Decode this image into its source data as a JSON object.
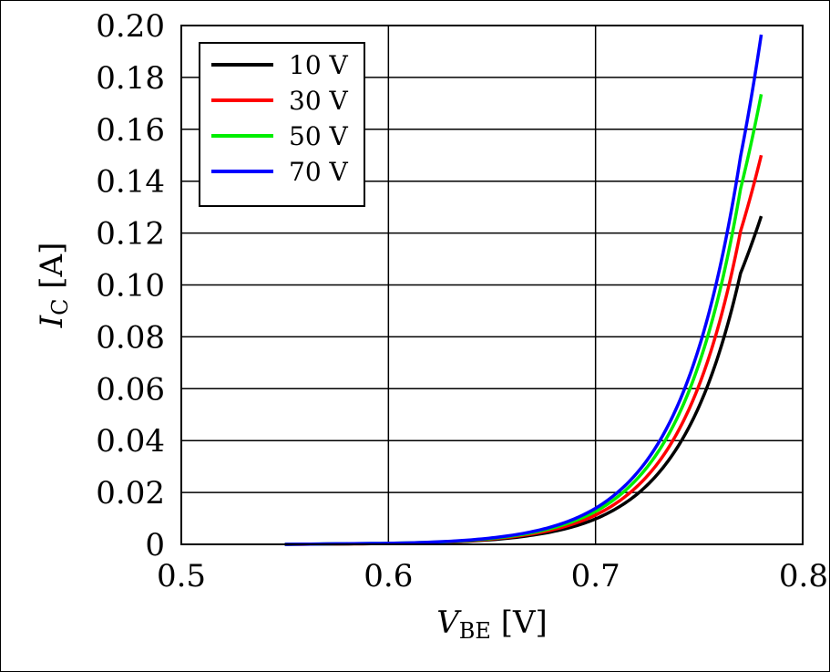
{
  "chart_data": {
    "type": "line",
    "title": "",
    "xlabel": {
      "main": "V",
      "sub": "BE",
      "unit": " [V]"
    },
    "ylabel": {
      "main": "I",
      "sub": "C",
      "unit": " [A]"
    },
    "xlim": [
      0.5,
      0.8
    ],
    "ylim": [
      0,
      0.2
    ],
    "x_ticks": [
      0.5,
      0.6,
      0.7,
      0.8
    ],
    "x_tick_labels": [
      "0.5",
      "0.6",
      "0.7",
      "0.8"
    ],
    "y_ticks": [
      0,
      0.02,
      0.04,
      0.06,
      0.08,
      0.1,
      0.12,
      0.14,
      0.16,
      0.18,
      0.2
    ],
    "y_tick_labels": [
      "0",
      "0.02",
      "0.04",
      "0.06",
      "0.08",
      "0.10",
      "0.12",
      "0.14",
      "0.16",
      "0.18",
      "0.20"
    ],
    "grid": true,
    "legend_position": "top-left",
    "x": [
      0.55,
      0.6,
      0.63,
      0.65,
      0.67,
      0.69,
      0.7,
      0.71,
      0.72,
      0.73,
      0.74,
      0.75,
      0.76,
      0.77,
      0.78
    ],
    "series": [
      {
        "name": "10 V",
        "color": "#000000",
        "values": [
          0.0,
          0.0003,
          0.0009,
          0.0018,
          0.0036,
          0.007,
          0.0098,
          0.0138,
          0.0193,
          0.0271,
          0.038,
          0.0532,
          0.0746,
          0.1045,
          0.1265
        ]
      },
      {
        "name": "30 V",
        "color": "#ff0000",
        "values": [
          0.0,
          0.0003,
          0.001,
          0.0021,
          0.0041,
          0.0081,
          0.0113,
          0.0159,
          0.0223,
          0.0312,
          0.0438,
          0.0614,
          0.0861,
          0.1207,
          0.15
        ]
      },
      {
        "name": "50 V",
        "color": "#00ee00",
        "values": [
          0.0,
          0.0004,
          0.0011,
          0.0023,
          0.0046,
          0.0091,
          0.0127,
          0.0179,
          0.0252,
          0.0354,
          0.0497,
          0.0697,
          0.0977,
          0.137,
          0.1735
        ]
      },
      {
        "name": "70 V",
        "color": "#0000ff",
        "values": [
          0.0,
          0.0004,
          0.0012,
          0.0025,
          0.005,
          0.0099,
          0.0139,
          0.0196,
          0.0275,
          0.0386,
          0.0542,
          0.076,
          0.1066,
          0.1495,
          0.1965
        ]
      }
    ]
  }
}
